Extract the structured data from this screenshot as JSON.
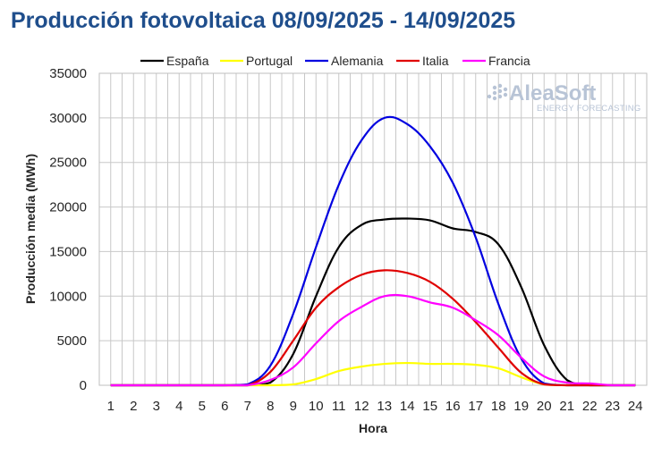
{
  "chart_data": {
    "type": "line",
    "title": "Producción fotovoltaica 08/09/2025 - 14/09/2025",
    "xlabel": "Hora",
    "ylabel": "Producción media (MWh)",
    "x": [
      1,
      2,
      3,
      4,
      5,
      6,
      7,
      8,
      9,
      10,
      11,
      12,
      13,
      14,
      15,
      16,
      17,
      18,
      19,
      20,
      21,
      22,
      23,
      24
    ],
    "ylim": [
      0,
      35000
    ],
    "yticks": [
      0,
      5000,
      10000,
      15000,
      20000,
      25000,
      30000,
      35000
    ],
    "xticks": [
      1,
      2,
      3,
      4,
      5,
      6,
      7,
      8,
      9,
      10,
      11,
      12,
      13,
      14,
      15,
      16,
      17,
      18,
      19,
      20,
      21,
      22,
      23,
      24
    ],
    "grid": true,
    "legend_position": "top",
    "series": [
      {
        "name": "España",
        "color": "#000000",
        "values": [
          0,
          0,
          0,
          0,
          0,
          0,
          0,
          300,
          3500,
          10000,
          15500,
          18000,
          18600,
          18700,
          18500,
          17600,
          17200,
          15800,
          11000,
          4500,
          600,
          0,
          0,
          0
        ]
      },
      {
        "name": "Portugal",
        "color": "#ffff00",
        "values": [
          0,
          0,
          0,
          0,
          0,
          0,
          0,
          0,
          100,
          700,
          1600,
          2100,
          2400,
          2500,
          2400,
          2400,
          2300,
          1900,
          900,
          100,
          0,
          0,
          0,
          0
        ]
      },
      {
        "name": "Alemania",
        "color": "#0000e0",
        "values": [
          0,
          0,
          0,
          0,
          0,
          0,
          100,
          2200,
          8000,
          15500,
          22500,
          27500,
          30000,
          29300,
          26800,
          22700,
          16600,
          9100,
          3000,
          200,
          0,
          0,
          0,
          0
        ]
      },
      {
        "name": "Italia",
        "color": "#e00000",
        "values": [
          0,
          0,
          0,
          0,
          0,
          0,
          0,
          1500,
          5000,
          8700,
          11000,
          12400,
          12900,
          12600,
          11600,
          9700,
          7100,
          4200,
          1400,
          100,
          0,
          0,
          0,
          0
        ]
      },
      {
        "name": "Francia",
        "color": "#ff00ff",
        "values": [
          0,
          0,
          0,
          0,
          0,
          0,
          0,
          600,
          2000,
          4700,
          7200,
          8800,
          10000,
          10000,
          9300,
          8700,
          7300,
          5600,
          3100,
          1000,
          300,
          200,
          0,
          0
        ]
      }
    ]
  },
  "watermark": {
    "brand": "AleaSoft",
    "tagline": "ENERGY FORECASTING",
    "icon": "aleasoft-logo-icon"
  }
}
